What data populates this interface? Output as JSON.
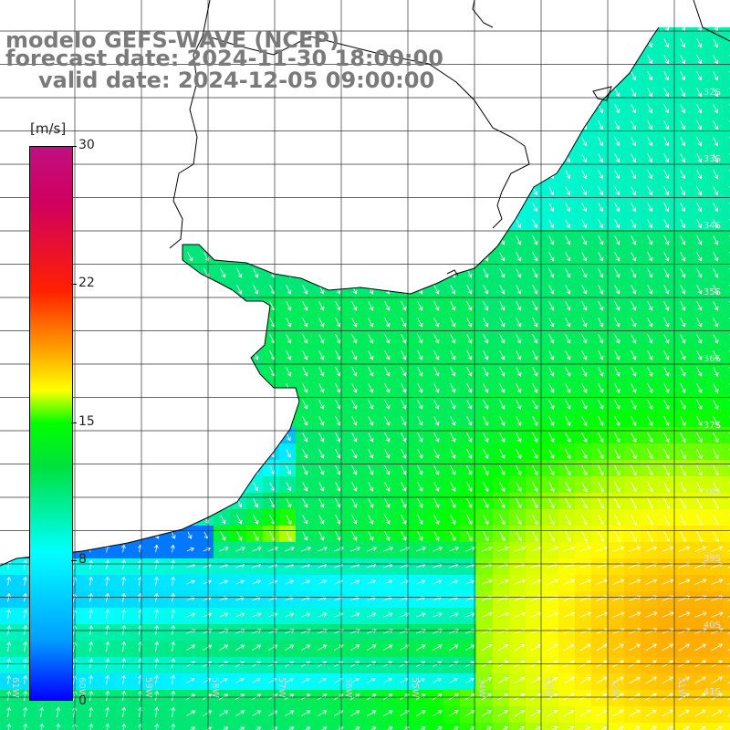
{
  "header": {
    "line1": "modelo GEFS-WAVE (NCEP)",
    "line2": "forecast date: 2024-11-30 18:00:00",
    "line3": "valid date: 2024-12-05 09:00:00"
  },
  "colorbar": {
    "unit": "[m/s]",
    "ticks": [
      "30",
      "22",
      "15",
      "8",
      "0"
    ],
    "min": 0,
    "max": 30
  },
  "grid": {
    "lat_labels": [
      "32S",
      "33S",
      "34S",
      "35S",
      "36S",
      "37S",
      "38S",
      "39S",
      "40S",
      "41S"
    ],
    "lon_labels": [
      "61W",
      "60W",
      "59W",
      "58W",
      "57W",
      "56W",
      "55W",
      "54W",
      "53W",
      "52W",
      "51W"
    ]
  },
  "colors": {
    "ocean_low": "#0000ff",
    "ocean_mid": "#00ff00",
    "ocean_high": "#ffa500",
    "arrow": "#ffffff",
    "coast": "#000000",
    "grid": "#222222",
    "header_text": "#7a7a7a"
  }
}
